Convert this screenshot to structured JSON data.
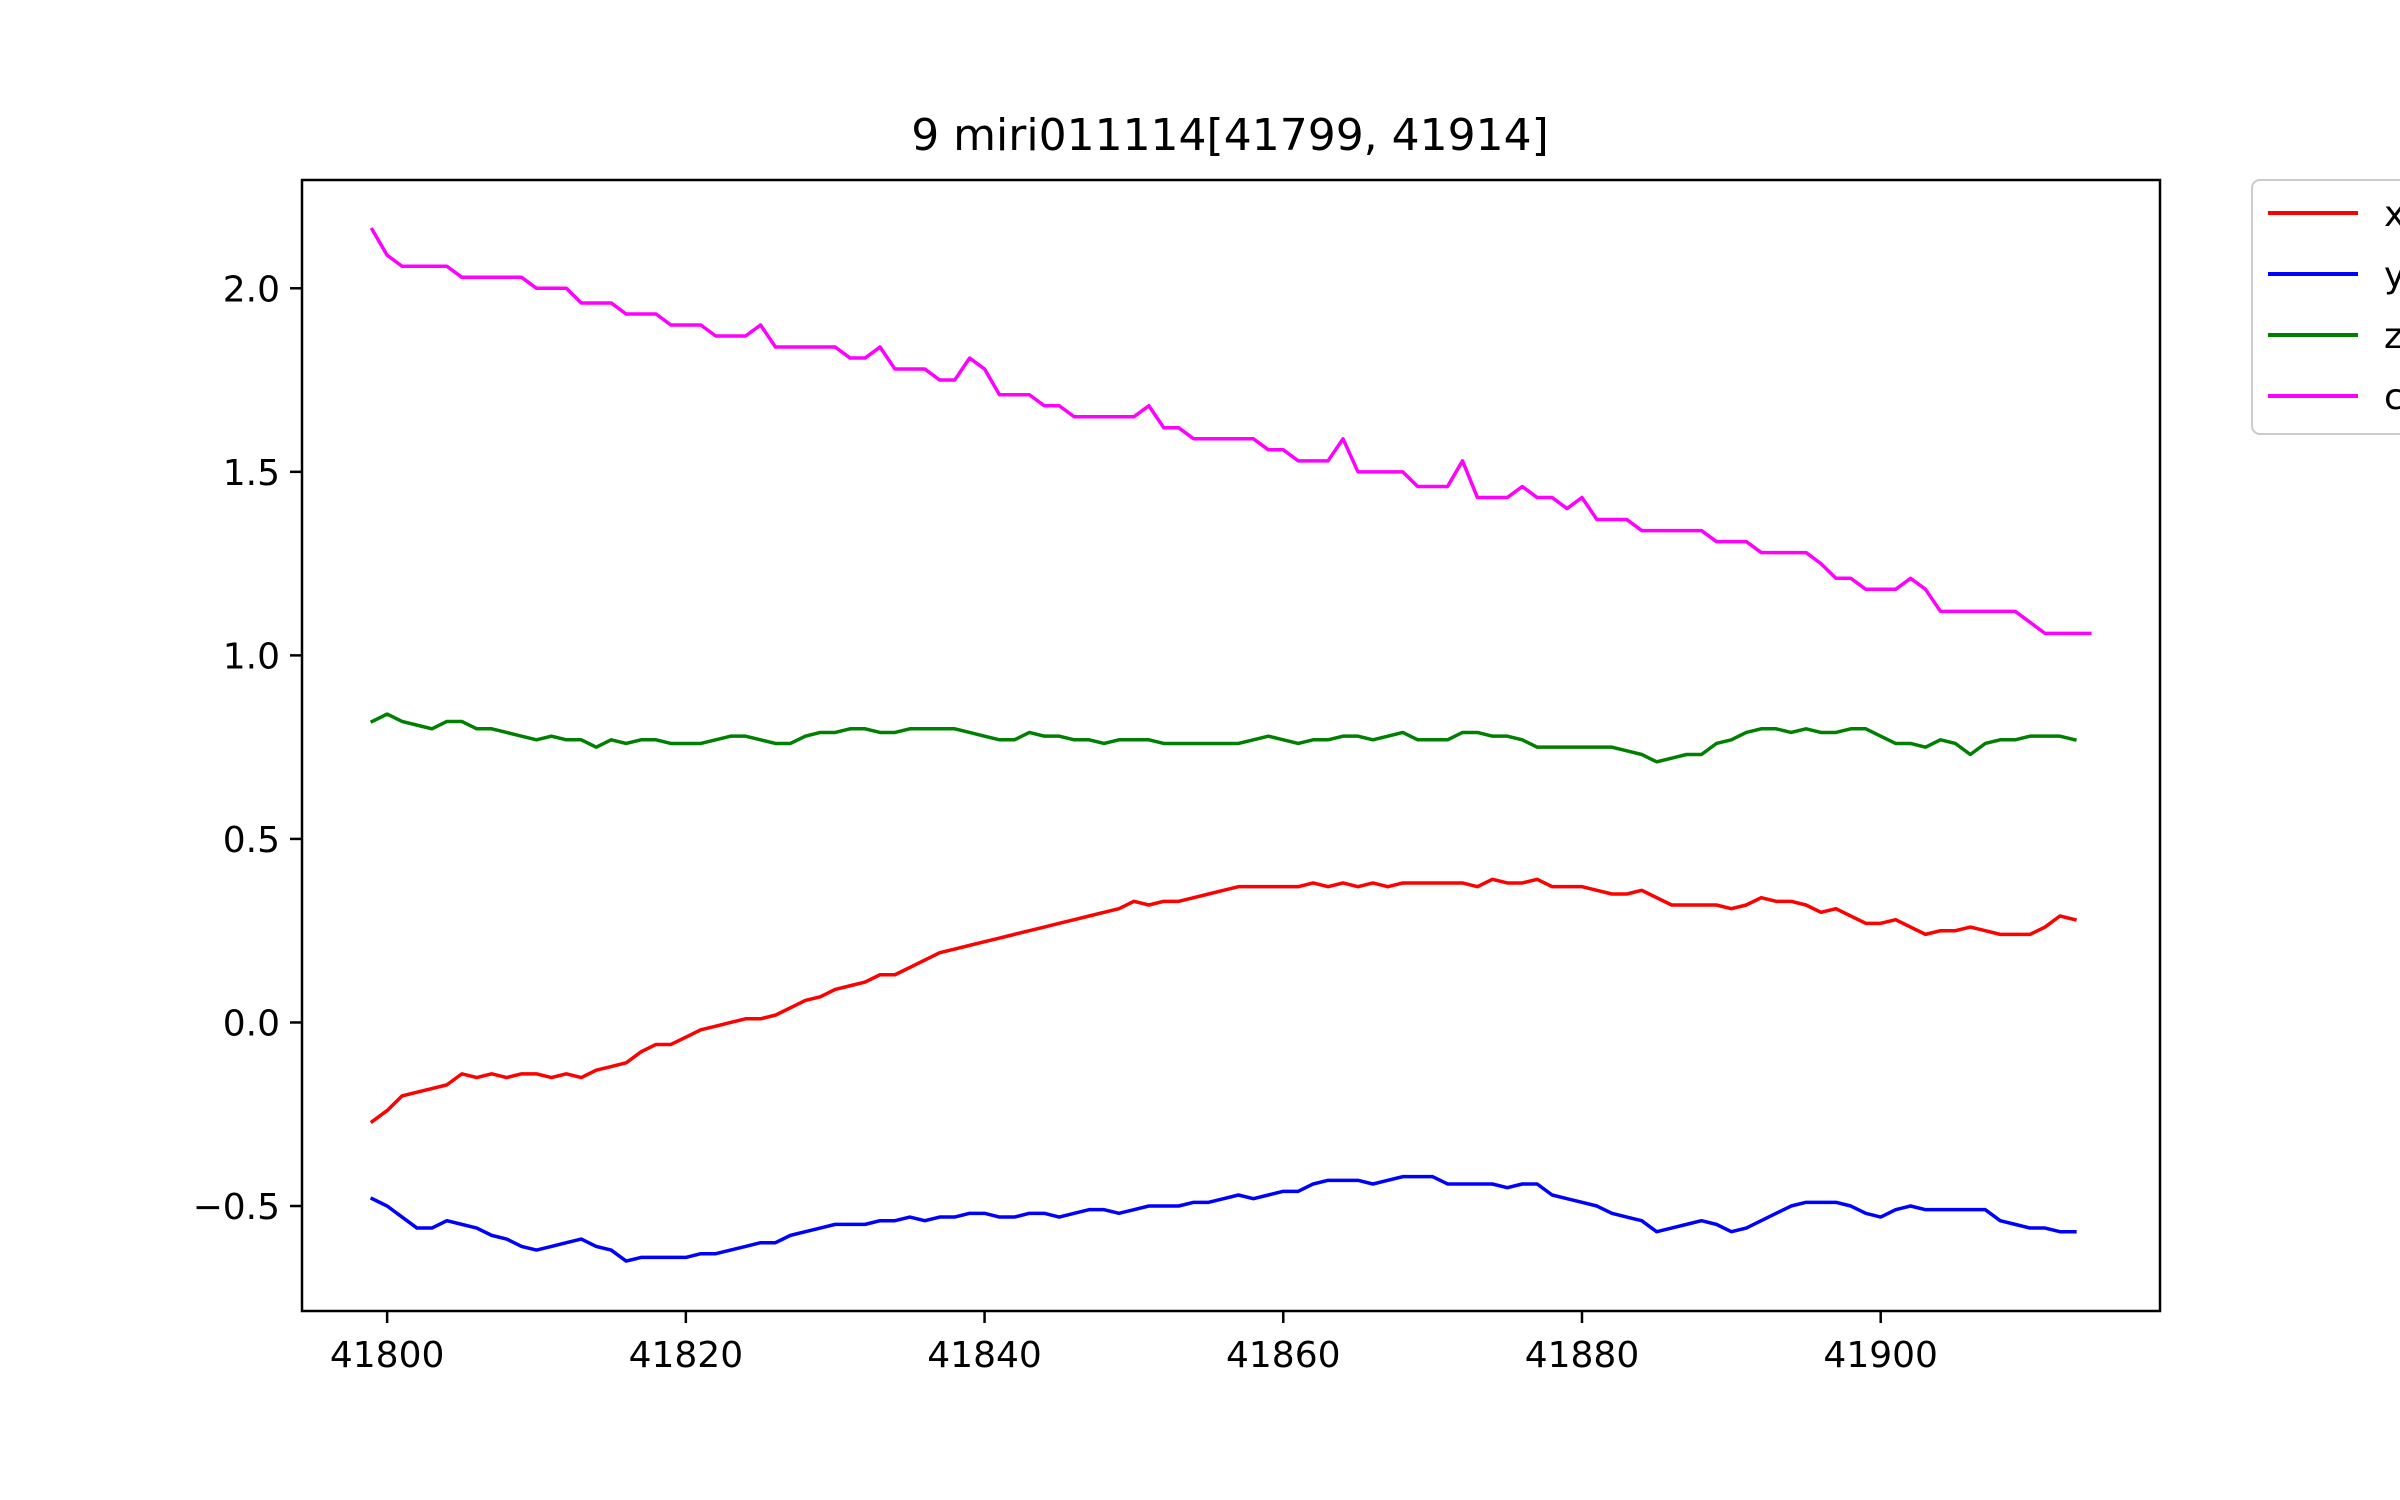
{
  "chart_data": {
    "type": "line",
    "title": "9 miri011114[41799, 41914]",
    "xlabel": "",
    "ylabel": "",
    "xlim": [
      41794.3,
      41918.7
    ],
    "ylim": [
      -0.786,
      2.295
    ],
    "x_ticks": [
      41800,
      41820,
      41840,
      41860,
      41880,
      41900
    ],
    "y_ticks": [
      -0.5,
      0.0,
      0.5,
      1.0,
      1.5,
      2.0
    ],
    "x_tick_labels": [
      "41800",
      "41820",
      "41840",
      "41860",
      "41880",
      "41900"
    ],
    "y_tick_labels": [
      "−0.5",
      "0.0",
      "0.5",
      "1.0",
      "1.5",
      "2.0"
    ],
    "grid": false,
    "legend_position": "outside-top-right",
    "x_start": 41799,
    "x_step": 1,
    "series": [
      {
        "name": "x",
        "color": "#ff0000",
        "values": [
          -0.27,
          -0.24,
          -0.2,
          -0.19,
          -0.18,
          -0.17,
          -0.14,
          -0.15,
          -0.14,
          -0.15,
          -0.14,
          -0.14,
          -0.15,
          -0.14,
          -0.15,
          -0.13,
          -0.12,
          -0.11,
          -0.08,
          -0.06,
          -0.06,
          -0.04,
          -0.02,
          -0.01,
          0.0,
          0.01,
          0.01,
          0.02,
          0.04,
          0.06,
          0.07,
          0.09,
          0.1,
          0.11,
          0.13,
          0.13,
          0.15,
          0.17,
          0.19,
          0.2,
          0.21,
          0.22,
          0.23,
          0.24,
          0.25,
          0.26,
          0.27,
          0.28,
          0.29,
          0.3,
          0.31,
          0.33,
          0.32,
          0.33,
          0.33,
          0.34,
          0.35,
          0.36,
          0.37,
          0.37,
          0.37,
          0.37,
          0.37,
          0.38,
          0.37,
          0.38,
          0.37,
          0.38,
          0.37,
          0.38,
          0.38,
          0.38,
          0.38,
          0.38,
          0.37,
          0.39,
          0.38,
          0.38,
          0.39,
          0.37,
          0.37,
          0.37,
          0.36,
          0.35,
          0.35,
          0.36,
          0.34,
          0.32,
          0.32,
          0.32,
          0.32,
          0.31,
          0.32,
          0.34,
          0.33,
          0.33,
          0.32,
          0.3,
          0.31,
          0.29,
          0.27,
          0.27,
          0.28,
          0.26,
          0.24,
          0.25,
          0.25,
          0.26,
          0.25,
          0.24,
          0.24,
          0.24,
          0.26,
          0.29,
          0.28
        ]
      },
      {
        "name": "y",
        "color": "#0000ff",
        "values": [
          -0.48,
          -0.5,
          -0.53,
          -0.56,
          -0.56,
          -0.54,
          -0.55,
          -0.56,
          -0.58,
          -0.59,
          -0.61,
          -0.62,
          -0.61,
          -0.6,
          -0.59,
          -0.61,
          -0.62,
          -0.65,
          -0.64,
          -0.64,
          -0.64,
          -0.64,
          -0.63,
          -0.63,
          -0.62,
          -0.61,
          -0.6,
          -0.6,
          -0.58,
          -0.57,
          -0.56,
          -0.55,
          -0.55,
          -0.55,
          -0.54,
          -0.54,
          -0.53,
          -0.54,
          -0.53,
          -0.53,
          -0.52,
          -0.52,
          -0.53,
          -0.53,
          -0.52,
          -0.52,
          -0.53,
          -0.52,
          -0.51,
          -0.51,
          -0.52,
          -0.51,
          -0.5,
          -0.5,
          -0.5,
          -0.49,
          -0.49,
          -0.48,
          -0.47,
          -0.48,
          -0.47,
          -0.46,
          -0.46,
          -0.44,
          -0.43,
          -0.43,
          -0.43,
          -0.44,
          -0.43,
          -0.42,
          -0.42,
          -0.42,
          -0.44,
          -0.44,
          -0.44,
          -0.44,
          -0.45,
          -0.44,
          -0.44,
          -0.47,
          -0.48,
          -0.49,
          -0.5,
          -0.52,
          -0.53,
          -0.54,
          -0.57,
          -0.56,
          -0.55,
          -0.54,
          -0.55,
          -0.57,
          -0.56,
          -0.54,
          -0.52,
          -0.5,
          -0.49,
          -0.49,
          -0.49,
          -0.5,
          -0.52,
          -0.53,
          -0.51,
          -0.5,
          -0.51,
          -0.51,
          -0.51,
          -0.51,
          -0.51,
          -0.54,
          -0.55,
          -0.56,
          -0.56,
          -0.57,
          -0.57
        ]
      },
      {
        "name": "z",
        "color": "#008000",
        "values": [
          0.82,
          0.84,
          0.82,
          0.81,
          0.8,
          0.82,
          0.82,
          0.8,
          0.8,
          0.79,
          0.78,
          0.77,
          0.78,
          0.77,
          0.77,
          0.75,
          0.77,
          0.76,
          0.77,
          0.77,
          0.76,
          0.76,
          0.76,
          0.77,
          0.78,
          0.78,
          0.77,
          0.76,
          0.76,
          0.78,
          0.79,
          0.79,
          0.8,
          0.8,
          0.79,
          0.79,
          0.8,
          0.8,
          0.8,
          0.8,
          0.79,
          0.78,
          0.77,
          0.77,
          0.79,
          0.78,
          0.78,
          0.77,
          0.77,
          0.76,
          0.77,
          0.77,
          0.77,
          0.76,
          0.76,
          0.76,
          0.76,
          0.76,
          0.76,
          0.77,
          0.78,
          0.77,
          0.76,
          0.77,
          0.77,
          0.78,
          0.78,
          0.77,
          0.78,
          0.79,
          0.77,
          0.77,
          0.77,
          0.79,
          0.79,
          0.78,
          0.78,
          0.77,
          0.75,
          0.75,
          0.75,
          0.75,
          0.75,
          0.75,
          0.74,
          0.73,
          0.71,
          0.72,
          0.73,
          0.73,
          0.76,
          0.77,
          0.79,
          0.8,
          0.8,
          0.79,
          0.8,
          0.79,
          0.79,
          0.8,
          0.8,
          0.78,
          0.76,
          0.76,
          0.75,
          0.77,
          0.76,
          0.73,
          0.76,
          0.77,
          0.77,
          0.78,
          0.78,
          0.78,
          0.77
        ]
      },
      {
        "name": "c",
        "color": "#ff00ff",
        "values": [
          2.16,
          2.09,
          2.06,
          2.06,
          2.06,
          2.06,
          2.03,
          2.03,
          2.03,
          2.03,
          2.03,
          2.0,
          2.0,
          2.0,
          1.96,
          1.96,
          1.96,
          1.93,
          1.93,
          1.93,
          1.9,
          1.9,
          1.9,
          1.87,
          1.87,
          1.87,
          1.9,
          1.84,
          1.84,
          1.84,
          1.84,
          1.84,
          1.81,
          1.81,
          1.84,
          1.78,
          1.78,
          1.78,
          1.75,
          1.75,
          1.81,
          1.78,
          1.71,
          1.71,
          1.71,
          1.68,
          1.68,
          1.65,
          1.65,
          1.65,
          1.65,
          1.65,
          1.68,
          1.62,
          1.62,
          1.59,
          1.59,
          1.59,
          1.59,
          1.59,
          1.56,
          1.56,
          1.53,
          1.53,
          1.53,
          1.59,
          1.5,
          1.5,
          1.5,
          1.5,
          1.46,
          1.46,
          1.46,
          1.53,
          1.43,
          1.43,
          1.43,
          1.46,
          1.43,
          1.43,
          1.4,
          1.43,
          1.37,
          1.37,
          1.37,
          1.34,
          1.34,
          1.34,
          1.34,
          1.34,
          1.31,
          1.31,
          1.31,
          1.28,
          1.28,
          1.28,
          1.28,
          1.25,
          1.21,
          1.21,
          1.18,
          1.18,
          1.18,
          1.21,
          1.18,
          1.12,
          1.12,
          1.12,
          1.12,
          1.12,
          1.12,
          1.09,
          1.06,
          1.06,
          1.06,
          1.06
        ]
      }
    ]
  }
}
